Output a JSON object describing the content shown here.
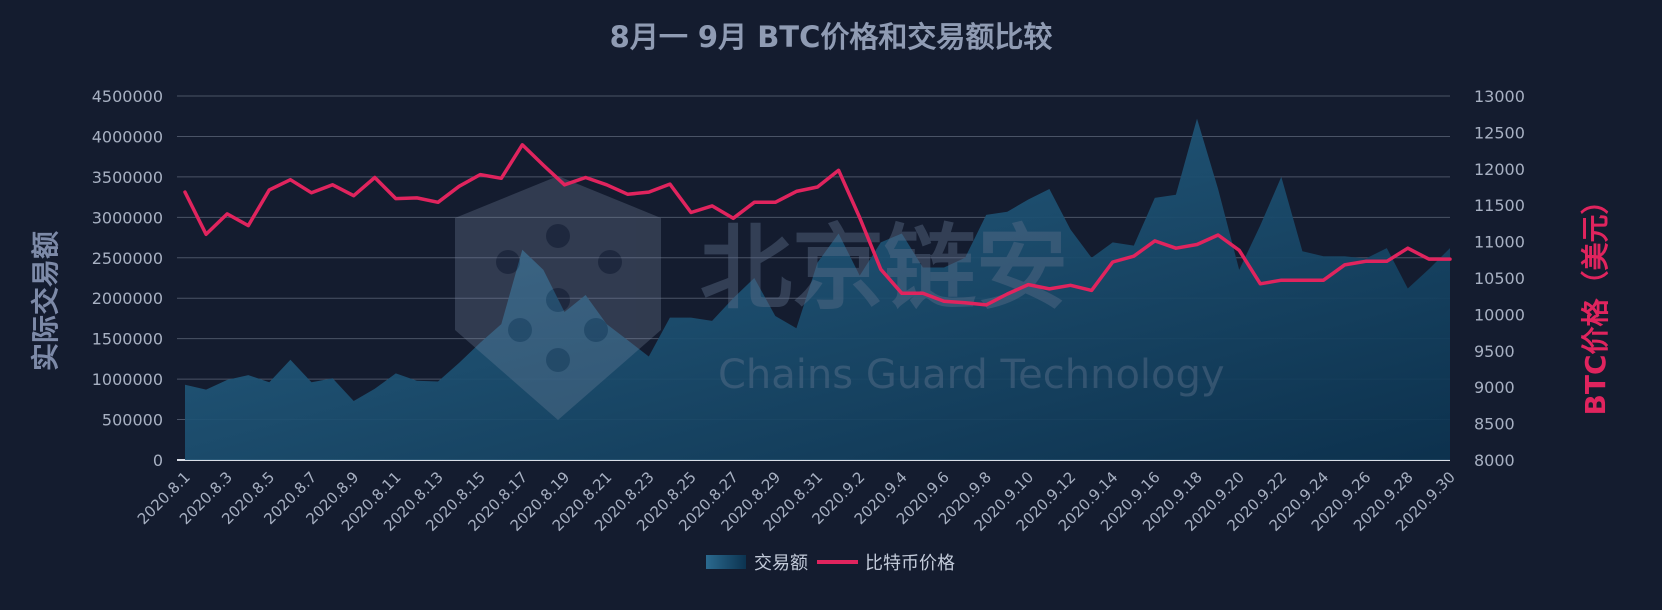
{
  "title": "8月一 9月 BTC价格和交易额比较",
  "watermark": {
    "cn": "北京链安",
    "en": "Chains Guard Technology"
  },
  "legend": {
    "volume": "交易额",
    "price": "比特币价格"
  },
  "colors": {
    "background": "#141c2f",
    "volume_fill_top": "#2b6a8f",
    "volume_fill_bottom": "#0c3350",
    "price_line": "#e0245e",
    "grid": "#4a5366"
  },
  "chart_data": {
    "type": "area+line",
    "title": "8月一 9月 BTC价格和交易额比较",
    "categories": [
      "2020.8.1",
      "2020.8.2",
      "2020.8.3",
      "2020.8.4",
      "2020.8.5",
      "2020.8.6",
      "2020.8.7",
      "2020.8.8",
      "2020.8.9",
      "2020.8.10",
      "2020.8.11",
      "2020.8.12",
      "2020.8.13",
      "2020.8.14",
      "2020.8.15",
      "2020.8.16",
      "2020.8.17",
      "2020.8.18",
      "2020.8.19",
      "2020.8.20",
      "2020.8.21",
      "2020.8.22",
      "2020.8.23",
      "2020.8.24",
      "2020.8.25",
      "2020.8.26",
      "2020.8.27",
      "2020.8.28",
      "2020.8.29",
      "2020.8.30",
      "2020.8.31",
      "2020.9.1",
      "2020.9.2",
      "2020.9.3",
      "2020.9.4",
      "2020.9.5",
      "2020.9.6",
      "2020.9.7",
      "2020.9.8",
      "2020.9.9",
      "2020.9.10",
      "2020.9.11",
      "2020.9.12",
      "2020.9.13",
      "2020.9.14",
      "2020.9.15",
      "2020.9.16",
      "2020.9.17",
      "2020.9.18",
      "2020.9.19",
      "2020.9.20",
      "2020.9.21",
      "2020.9.22",
      "2020.9.23",
      "2020.9.24",
      "2020.9.25",
      "2020.9.26",
      "2020.9.27",
      "2020.9.28",
      "2020.9.29",
      "2020.9.30"
    ],
    "x_tick_labels": [
      "2020.8.1",
      "2020.8.3",
      "2020.8.5",
      "2020.8.7",
      "2020.8.9",
      "2020.8.11",
      "2020.8.13",
      "2020.8.15",
      "2020.8.17",
      "2020.8.19",
      "2020.8.21",
      "2020.8.23",
      "2020.8.25",
      "2020.8.27",
      "2020.8.29",
      "2020.8.31",
      "2020.9.2",
      "2020.9.4",
      "2020.9.6",
      "2020.9.8",
      "2020.9.10",
      "2020.9.12",
      "2020.9.14",
      "2020.9.16",
      "2020.9.18",
      "2020.9.20",
      "2020.9.22",
      "2020.9.24",
      "2020.9.26",
      "2020.9.28",
      "2020.9.30"
    ],
    "series": [
      {
        "name": "交易额",
        "type": "area",
        "axis": "left",
        "values": [
          930000,
          870000,
          990000,
          1050000,
          960000,
          1240000,
          960000,
          1010000,
          730000,
          880000,
          1070000,
          980000,
          970000,
          1200000,
          1450000,
          1680000,
          2600000,
          2350000,
          1830000,
          2040000,
          1680000,
          1480000,
          1280000,
          1760000,
          1760000,
          1720000,
          2000000,
          2250000,
          1780000,
          1630000,
          2440000,
          2800000,
          2280000,
          2690000,
          2800000,
          2380000,
          2380000,
          2500000,
          3030000,
          3070000,
          3220000,
          3350000,
          2850000,
          2500000,
          2690000,
          2650000,
          3240000,
          3280000,
          4220000,
          3350000,
          2350000,
          2900000,
          3500000,
          2580000,
          2520000,
          2520000,
          2490000,
          2620000,
          2120000,
          2360000,
          2620000
        ]
      },
      {
        "name": "比特币价格",
        "type": "line",
        "axis": "right",
        "values": [
          11680,
          11100,
          11380,
          11220,
          11710,
          11850,
          11670,
          11780,
          11630,
          11880,
          11590,
          11600,
          11540,
          11760,
          11920,
          11870,
          12330,
          12050,
          11780,
          11880,
          11780,
          11650,
          11680,
          11790,
          11400,
          11490,
          11320,
          11540,
          11540,
          11690,
          11750,
          11980,
          11330,
          10620,
          10290,
          10290,
          10180,
          10160,
          10130,
          10280,
          10410,
          10350,
          10400,
          10330,
          10720,
          10800,
          11010,
          10910,
          10960,
          11090,
          10880,
          10420,
          10470,
          10470,
          10470,
          10680,
          10730,
          10730,
          10910,
          10760,
          10760
        ]
      }
    ],
    "y_left": {
      "label": "实际交易额",
      "min": 0,
      "max": 4500000,
      "ticks": [
        0,
        500000,
        1000000,
        1500000,
        2000000,
        2500000,
        3000000,
        3500000,
        4000000,
        4500000
      ]
    },
    "y_right": {
      "label": "BTC价格（美元）",
      "min": 8000,
      "max": 13000,
      "ticks": [
        8000,
        8500,
        9000,
        9500,
        10000,
        10500,
        11000,
        11500,
        12000,
        12500,
        13000
      ]
    },
    "grid": true,
    "legend_position": "bottom-center"
  }
}
